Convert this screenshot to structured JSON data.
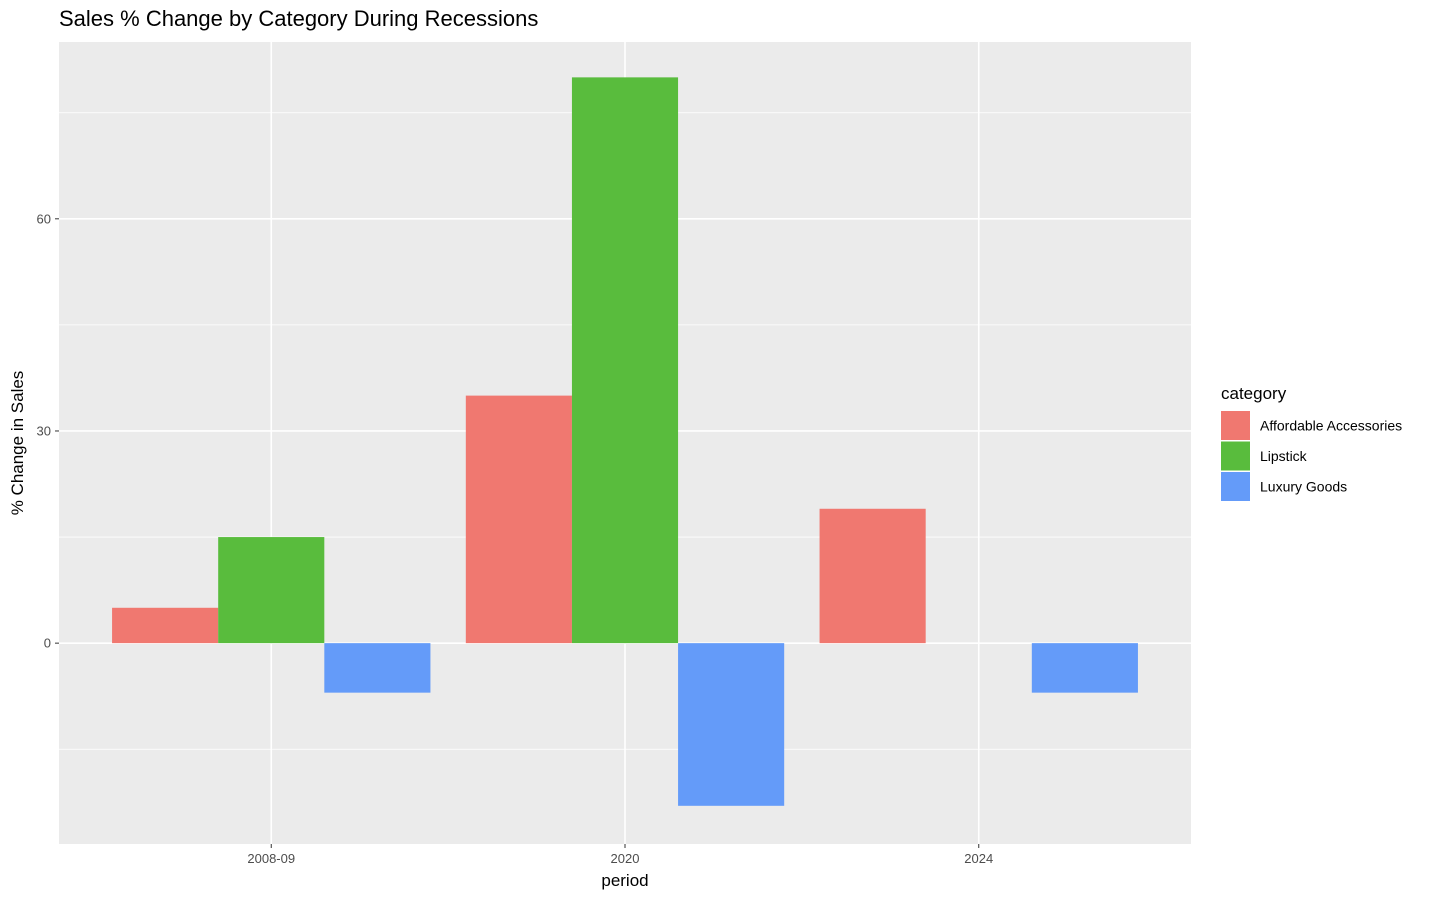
{
  "chart_data": {
    "type": "bar",
    "title": "Sales % Change by Category During Recessions",
    "xlabel": "period",
    "ylabel": "% Change in Sales",
    "categories": [
      "2008-09",
      "2020",
      "2024"
    ],
    "series": [
      {
        "name": "Affordable Accessories",
        "color": "#F07870",
        "values": [
          5,
          35,
          19
        ]
      },
      {
        "name": "Lipstick",
        "color": "#59BC3D",
        "values": [
          15,
          80,
          null
        ]
      },
      {
        "name": "Luxury Goods",
        "color": "#649BF9",
        "values": [
          -7,
          -23,
          -7
        ]
      }
    ],
    "ylim": [
      -28.4,
      85
    ],
    "yticks": [
      0,
      30,
      60
    ],
    "ytick_labels": [
      "0",
      "30",
      "60"
    ],
    "grid": true,
    "legend": {
      "title": "category",
      "position": "right"
    }
  }
}
